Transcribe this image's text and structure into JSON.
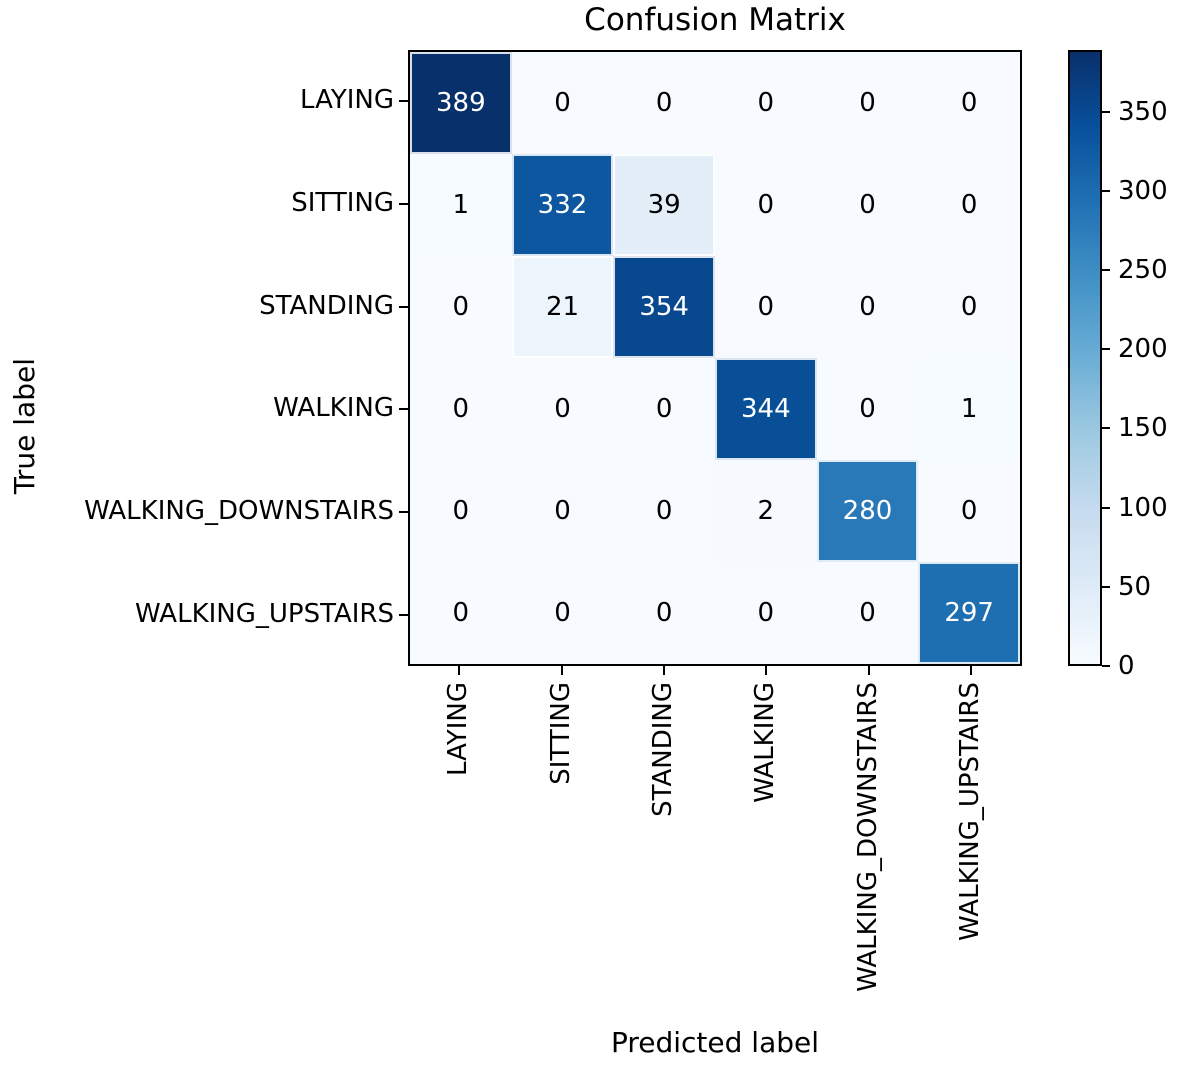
{
  "chart_data": {
    "type": "heatmap",
    "title": "Confusion Matrix",
    "xlabel": "Predicted label",
    "ylabel": "True label",
    "categories": [
      "LAYING",
      "SITTING",
      "STANDING",
      "WALKING",
      "WALKING_DOWNSTAIRS",
      "WALKING_UPSTAIRS"
    ],
    "matrix": [
      [
        389,
        0,
        0,
        0,
        0,
        0
      ],
      [
        1,
        332,
        39,
        0,
        0,
        0
      ],
      [
        0,
        21,
        354,
        0,
        0,
        0
      ],
      [
        0,
        0,
        0,
        344,
        0,
        1
      ],
      [
        0,
        0,
        0,
        2,
        280,
        0
      ],
      [
        0,
        0,
        0,
        0,
        0,
        297
      ]
    ],
    "vmin": 0,
    "vmax": 389,
    "colormap": "Blues",
    "colorbar_ticks": [
      0,
      50,
      100,
      150,
      200,
      250,
      300,
      350
    ],
    "legend_position": "colorbar-right",
    "grid": false
  },
  "colors": {
    "colormap_stops": [
      "#f7fbff",
      "#deebf7",
      "#c6dbef",
      "#9ecae1",
      "#6baed6",
      "#4292c6",
      "#2171b5",
      "#08519c",
      "#08306b"
    ],
    "cell_text_light": "#ffffff",
    "cell_text_dark": "#000000",
    "axis": "#000000",
    "background": "#ffffff"
  }
}
